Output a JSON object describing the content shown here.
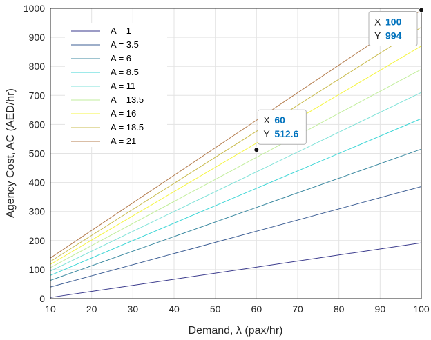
{
  "chart_data": {
    "type": "line",
    "title": "",
    "xlabel": "Demand, λ (pax/hr)",
    "ylabel": "Agency Cost, AC (AED/hr)",
    "xlim": [
      10,
      100
    ],
    "ylim": [
      0,
      1000
    ],
    "x_ticks": [
      10,
      20,
      30,
      40,
      50,
      60,
      70,
      80,
      90,
      100
    ],
    "y_ticks": [
      0,
      100,
      200,
      300,
      400,
      500,
      600,
      700,
      800,
      900,
      1000
    ],
    "grid": true,
    "legend_position": "top-left",
    "x": [
      10,
      100
    ],
    "series": [
      {
        "name": "A = 1",
        "color": "#3a3a8c",
        "values": [
          4,
          192
        ]
      },
      {
        "name": "A = 3.5",
        "color": "#3e5f95",
        "values": [
          40,
          386
        ]
      },
      {
        "name": "A = 6",
        "color": "#3c8aa1",
        "values": [
          63,
          515
        ]
      },
      {
        "name": "A = 8.5",
        "color": "#3dd6d6",
        "values": [
          80,
          620
        ]
      },
      {
        "name": "A = 11",
        "color": "#7ee2d8",
        "values": [
          95,
          710
        ]
      },
      {
        "name": "A = 13.5",
        "color": "#c2ee9c",
        "values": [
          107,
          790
        ]
      },
      {
        "name": "A = 16",
        "color": "#f5f542",
        "values": [
          118,
          870
        ]
      },
      {
        "name": "A = 18.5",
        "color": "#c9bb4c",
        "values": [
          128,
          935
        ]
      },
      {
        "name": "A = 21",
        "color": "#b57d4e",
        "values": [
          140,
          994
        ]
      }
    ],
    "annotations": [
      {
        "x_label": "X",
        "x_value": "60",
        "y_label": "Y",
        "y_value": "512.6",
        "point": [
          60,
          512.6
        ]
      },
      {
        "x_label": "X",
        "x_value": "100",
        "y_label": "Y",
        "y_value": "994",
        "point": [
          100,
          994
        ]
      }
    ]
  }
}
